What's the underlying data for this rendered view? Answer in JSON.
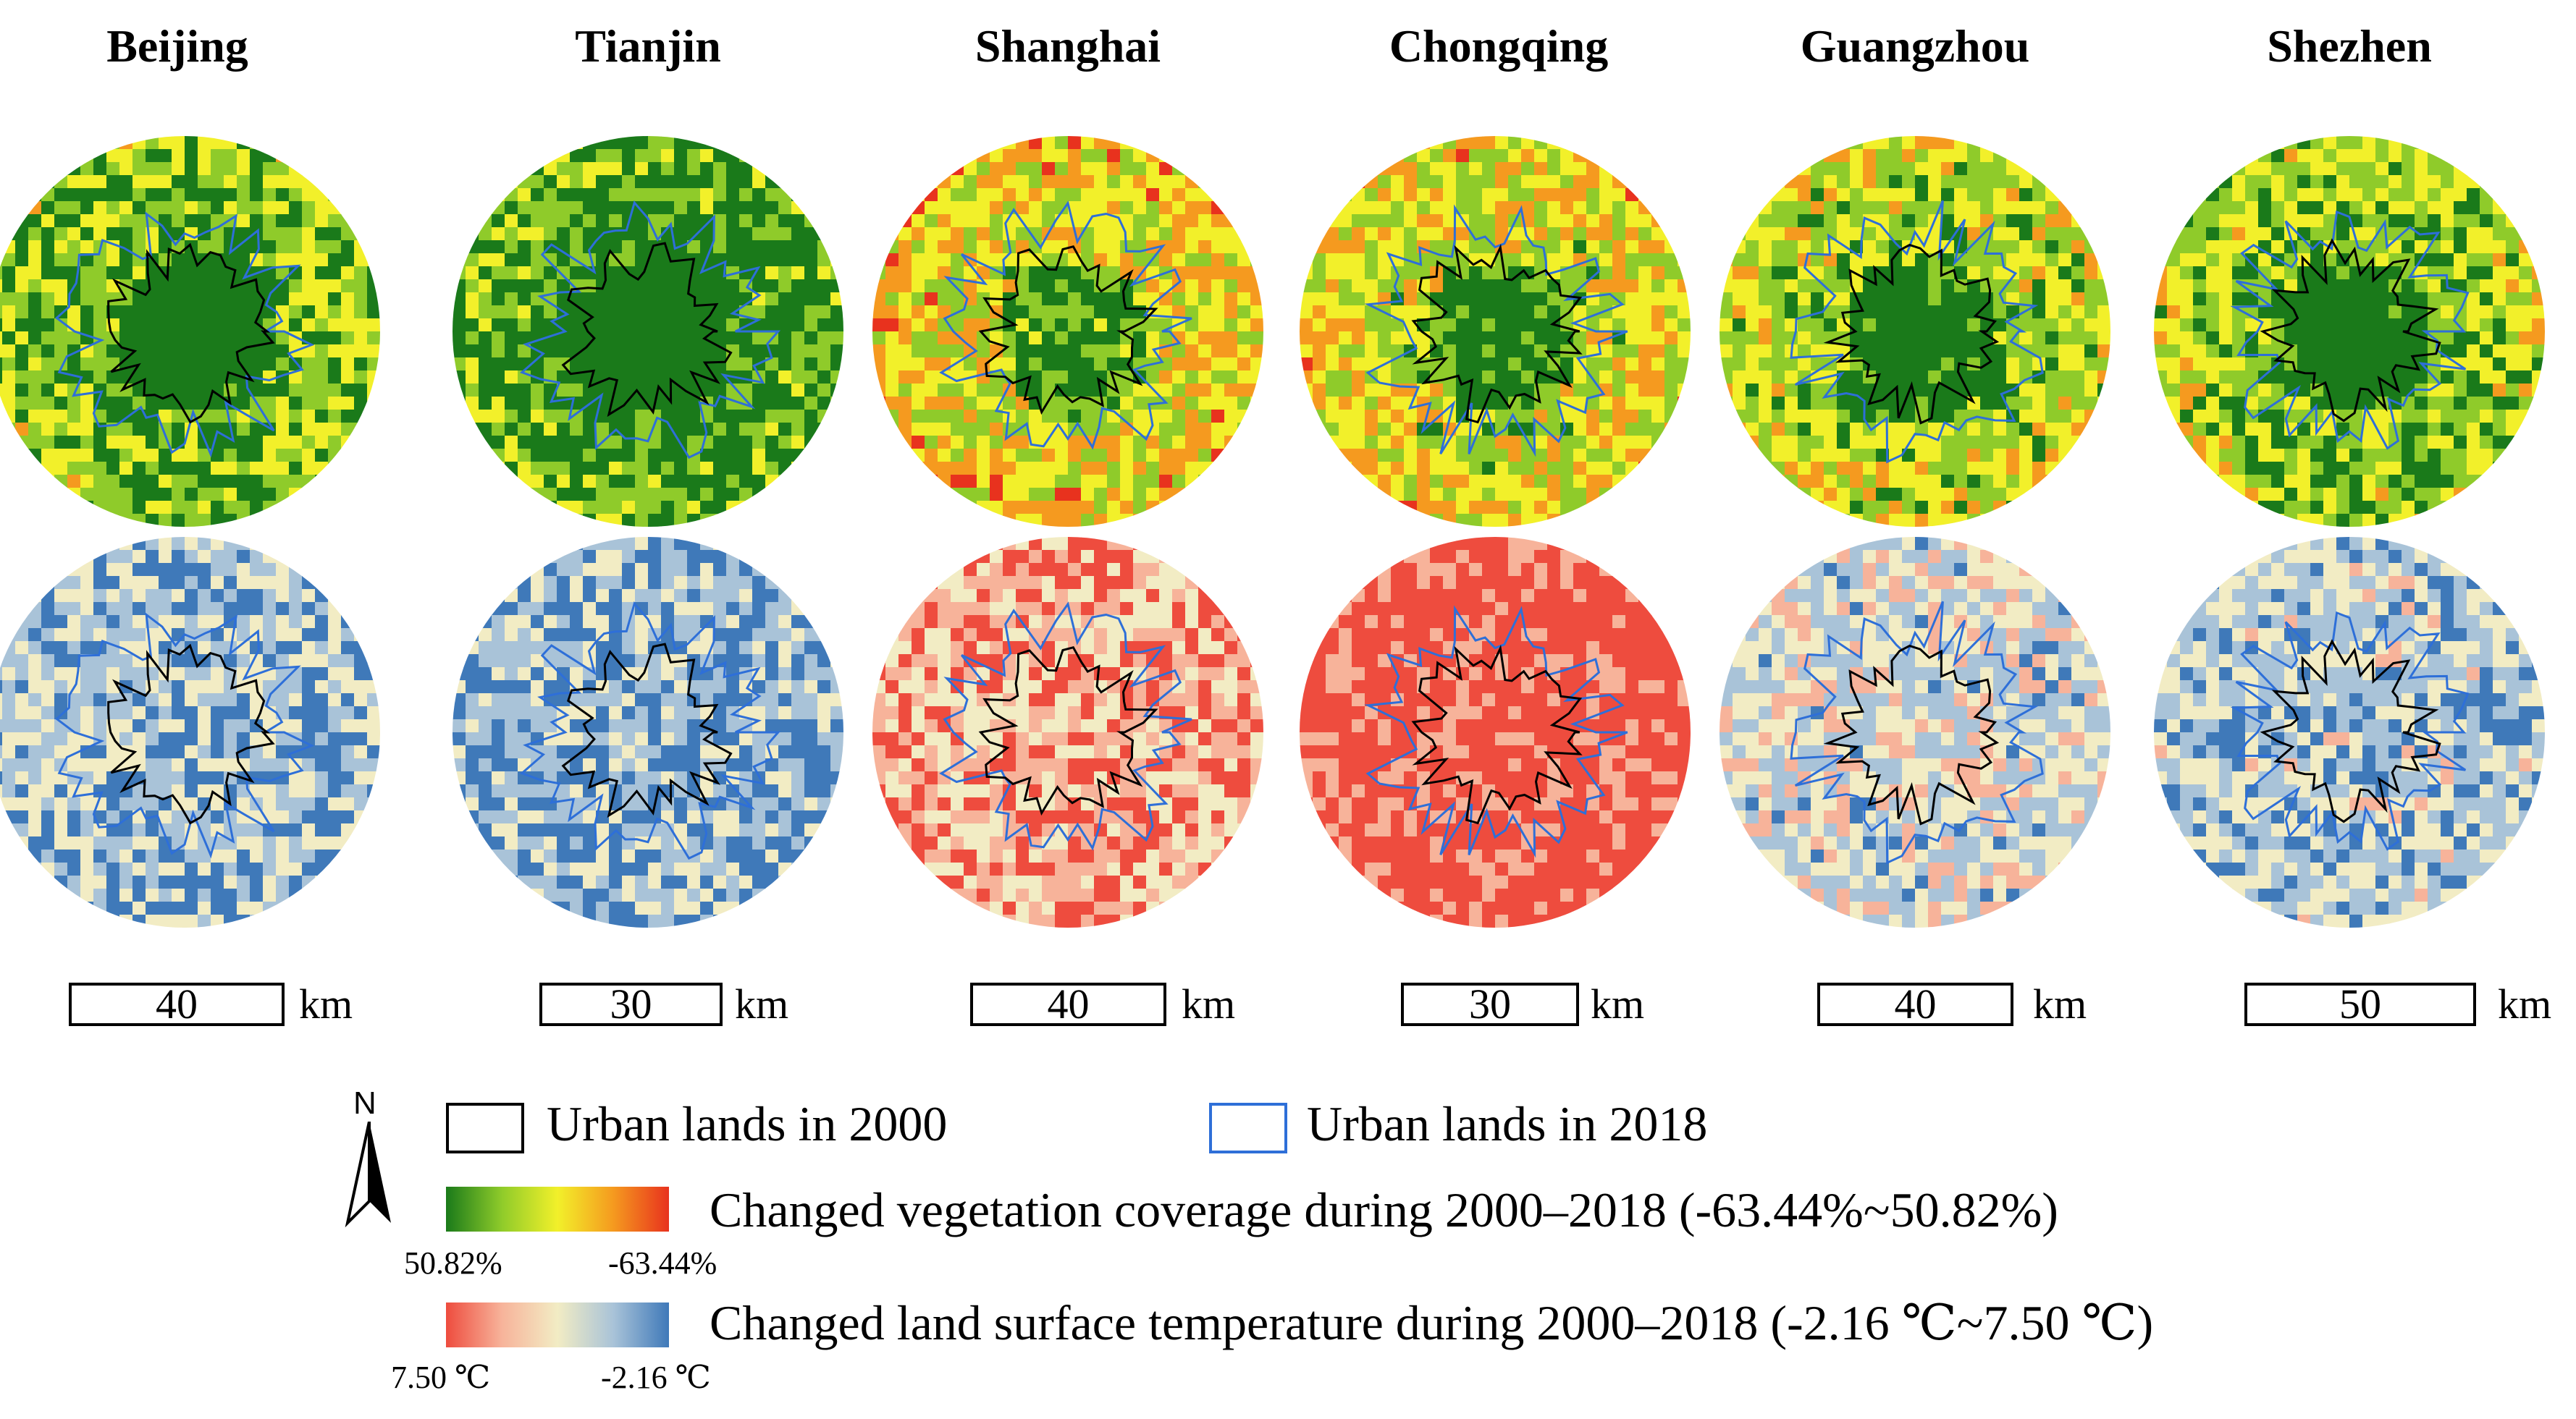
{
  "cities": [
    {
      "name": "Beijing",
      "scale_value": "40",
      "scale_unit": "km"
    },
    {
      "name": "Tianjin",
      "scale_value": "30",
      "scale_unit": "km"
    },
    {
      "name": "Shanghai",
      "scale_value": "40",
      "scale_unit": "km"
    },
    {
      "name": "Chongqing",
      "scale_value": "30",
      "scale_unit": "km"
    },
    {
      "name": "Guangzhou",
      "scale_value": "40",
      "scale_unit": "km"
    },
    {
      "name": "Shezhen",
      "scale_value": "50",
      "scale_unit": "km"
    }
  ],
  "legend": {
    "north_label": "N",
    "urban_2000": "Urban lands in 2000",
    "urban_2018": "Urban lands in 2018",
    "vegetation": {
      "label": "Changed vegetation coverage during 2000–2018 (-63.44%~50.82%)",
      "min_label": "50.82%",
      "max_label": "-63.44%",
      "colors": [
        "#1a7a1a",
        "#8fcb2a",
        "#f2f02a",
        "#f59a1f",
        "#e8321e"
      ]
    },
    "lst": {
      "label": "Changed land surface temperature during 2000–2018 (-2.16 ℃~7.50 ℃)",
      "min_label": "7.50 ℃",
      "max_label": "-2.16 ℃",
      "colors": [
        "#ee4c3e",
        "#f7b39a",
        "#f2ecc4",
        "#a9c3d8",
        "#3f79b9"
      ]
    }
  },
  "colors": {
    "urban_2000_line": "#000000",
    "urban_2018_line": "#2e6fd8"
  }
}
